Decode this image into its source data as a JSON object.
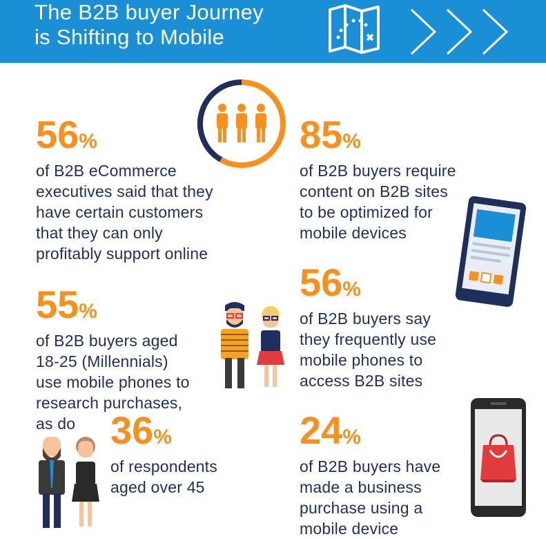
{
  "header": {
    "title": "The B2B buyer Journey\nis Shifting to Mobile",
    "bg_color": "#1b8fd6",
    "icons": [
      "map-icon",
      "chevron-right-icon"
    ]
  },
  "accent_color": "#f7901e",
  "text_color": "#1e2f5c",
  "stats": [
    {
      "id": "s1",
      "value": "56",
      "unit": "%",
      "text": "of B2B eCommerce\nexecutives said that they\nhave certain customers\nthat they can only\nprofitably support online"
    },
    {
      "id": "s2",
      "value": "85",
      "unit": "%",
      "text": "of B2B buyers require\ncontent on B2B sites\nto be optimized for\nmobile devices"
    },
    {
      "id": "s3",
      "value": "56",
      "unit": "%",
      "text": "of B2B buyers say\nthey frequently use\nmobile phones to\naccess B2B sites"
    },
    {
      "id": "s4",
      "value": "55",
      "unit": "%",
      "text": "of B2B buyers aged\n18-25 (Millennials)\nuse mobile phones to\nresearch purchases,\nas do"
    },
    {
      "id": "s5",
      "value": "36",
      "unit": "%",
      "text": "of respondents\naged over 45"
    },
    {
      "id": "s6",
      "value": "24",
      "unit": "%",
      "text": "of B2B buyers have\nmade a business\npurchase using a\nmobile device"
    }
  ],
  "illustrations": [
    "people-ring-icon",
    "tablet-icon",
    "young-couple-illustration",
    "older-couple-illustration",
    "phone-shopping-bag-icon"
  ]
}
